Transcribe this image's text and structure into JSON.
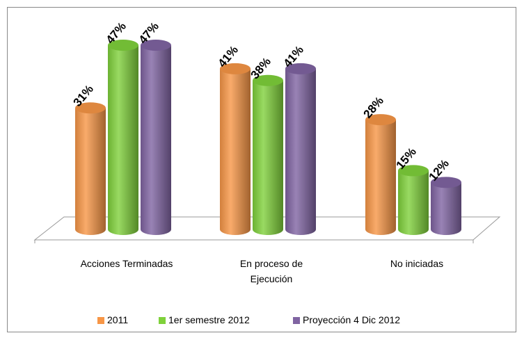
{
  "chart_data": {
    "type": "bar3d",
    "categories": [
      "Acciones Terminadas",
      "En proceso de Ejecución",
      "No iniciadas"
    ],
    "series": [
      {
        "name": "2011",
        "color": "#f79646",
        "values": [
          31,
          41,
          28
        ],
        "value_labels": [
          "31%",
          "41%",
          "28%"
        ]
      },
      {
        "name": "1er semestre 2012",
        "color": "#7fd13b",
        "values": [
          47,
          38,
          15
        ],
        "value_labels": [
          "47%",
          "38%",
          "15%"
        ]
      },
      {
        "name": "Proyección  4 Dic 2012",
        "color": "#8064a2",
        "values": [
          47,
          41,
          12
        ],
        "value_labels": [
          "47%",
          "41%",
          "12%"
        ]
      }
    ],
    "legend": "bottom"
  }
}
